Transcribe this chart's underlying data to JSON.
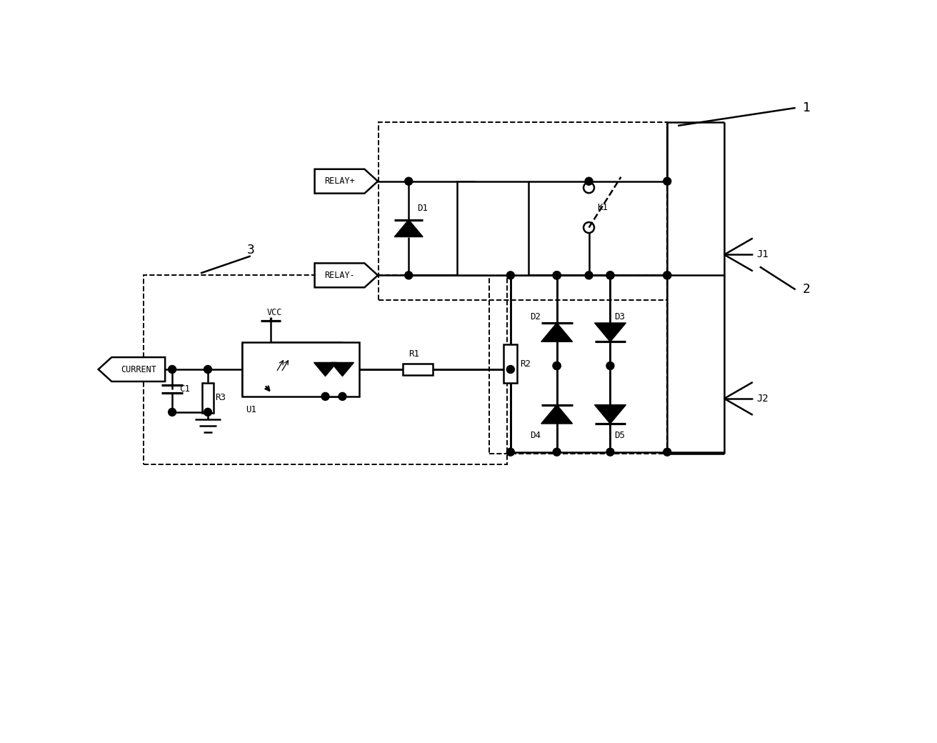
{
  "bg_color": "#ffffff",
  "line_color": "#000000",
  "lw": 1.8,
  "dlw": 1.4,
  "labels": {
    "RELAY_PLUS": "RELAY+",
    "RELAY_MINUS": "RELAY-",
    "CURRENT": "CURRENT",
    "VCC": "VCC",
    "D1": "D1",
    "D2": "D2",
    "D3": "D3",
    "D4": "D4",
    "D5": "D5",
    "R1": "R1",
    "R2": "R2",
    "R3": "R3",
    "C1": "C1",
    "U1": "U1",
    "K1": "K1",
    "J1": "J1",
    "J2": "J2",
    "n1": "1",
    "n2": "2",
    "n3": "3"
  }
}
